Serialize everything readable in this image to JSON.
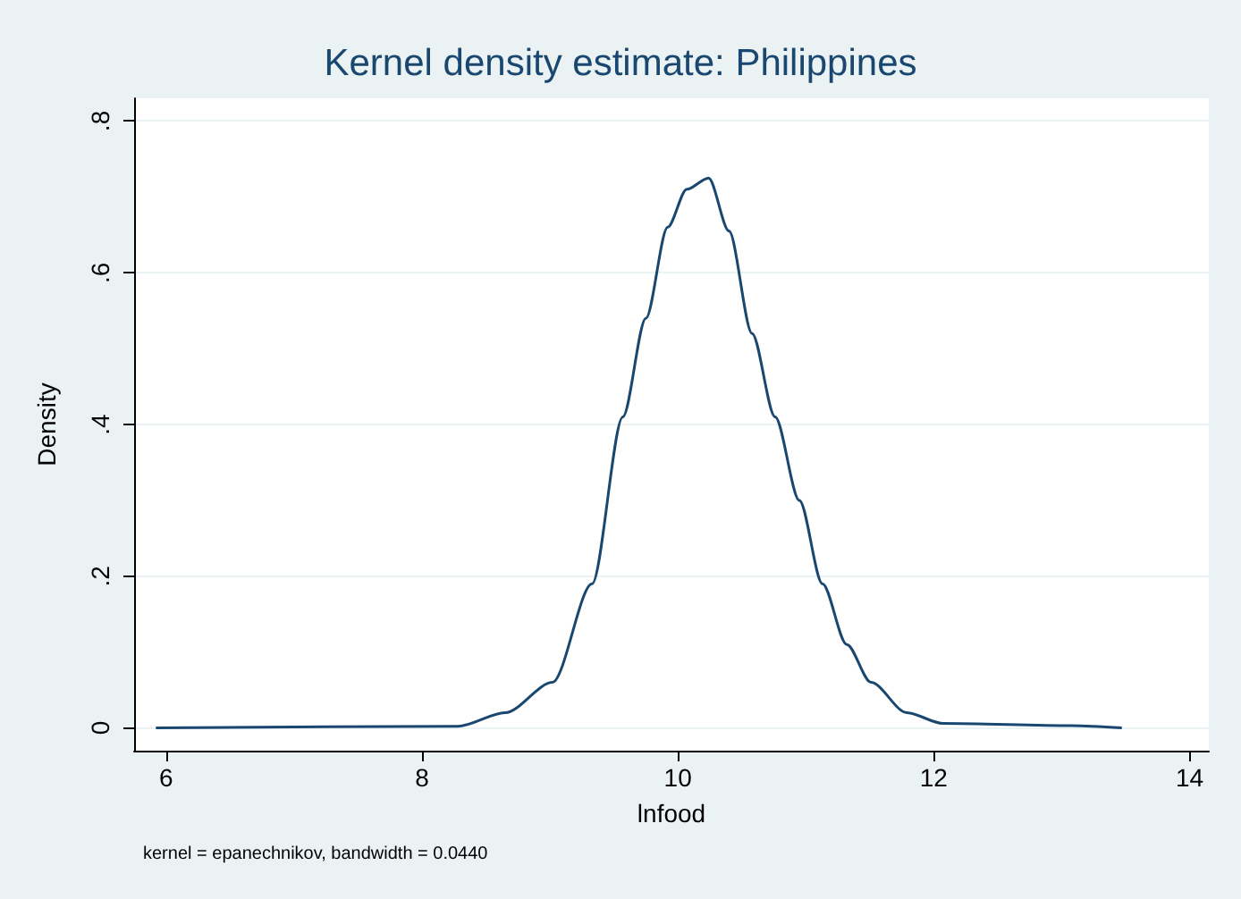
{
  "chart_data": {
    "type": "line",
    "title": "Kernel density estimate: Philippines",
    "xlabel": "lnfood",
    "ylabel": "Density",
    "annotations": [
      "kernel = epanechnikov, bandwidth = 0.0440"
    ],
    "x": [
      5.92,
      8.28,
      8.65,
      9.02,
      9.33,
      9.57,
      9.75,
      9.92,
      10.07,
      10.24,
      10.4,
      10.58,
      10.76,
      10.95,
      11.13,
      11.32,
      11.51,
      11.79,
      12.07,
      13.08,
      13.47
    ],
    "series": [
      {
        "color": "#1a476f",
        "values": [
          0,
          0.002,
          0.02,
          0.06,
          0.19,
          0.41,
          0.54,
          0.66,
          0.71,
          0.725,
          0.655,
          0.52,
          0.41,
          0.3,
          0.19,
          0.11,
          0.06,
          0.02,
          0.006,
          0.003,
          0
        ]
      }
    ],
    "xlim": [
      5.75,
      14.15
    ],
    "xticks": [
      6,
      8,
      10,
      12,
      14
    ],
    "ylim": [
      -0.03,
      0.83
    ],
    "yticks": [
      0,
      {
        "value": 0.2,
        "label": ".2"
      },
      {
        "value": 0.4,
        "label": ".4"
      },
      {
        "value": 0.6,
        "label": ".6"
      },
      {
        "value": 0.8,
        "label": ".8"
      }
    ],
    "grid": "y",
    "marker": "none",
    "line_style": "solid"
  }
}
